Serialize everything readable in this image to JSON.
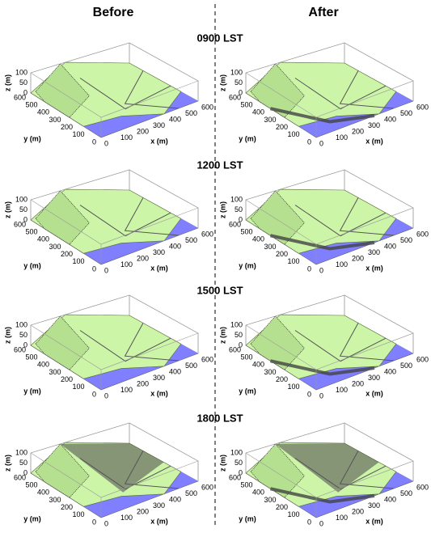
{
  "columns": [
    "Before",
    "After"
  ],
  "times": [
    "0900 LST",
    "1200 LST",
    "1500 LST",
    "1800 LST"
  ],
  "axes": {
    "z_label": "z (m)",
    "y_label": "y (m)",
    "x_label": "x (m)",
    "z_ticks": [
      100,
      50,
      0
    ],
    "y_ticks": [
      600,
      500,
      400,
      300,
      200,
      100,
      0
    ],
    "x_ticks": [
      0,
      100,
      200,
      300,
      400,
      500,
      600
    ]
  }
}
